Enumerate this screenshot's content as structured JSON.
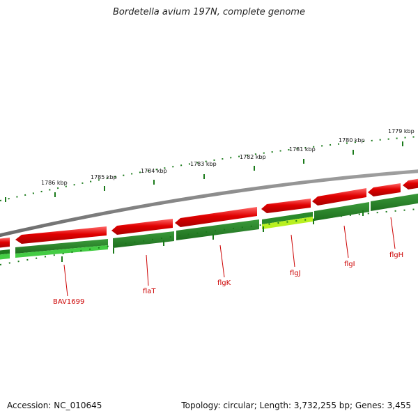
{
  "title": "Bordetella avium 197N, complete genome",
  "kbp_labels": [
    "1786 kbp",
    "1785 kbp",
    "1784 kbp",
    "1783 kbp",
    "1782 kbp",
    "1781 kbp",
    "1780 kbp",
    "1779 kbp"
  ],
  "gene_labels": [
    "BAV1699",
    "flaT",
    "flgK",
    "flgJ",
    "flgI",
    "flgH"
  ],
  "footer": {
    "accession": "Accession: NC_010645",
    "summary": "Topology: circular; Length: 3,732,255 bp; Genes: 3,455"
  },
  "colors": {
    "forward_gene": "#e00000",
    "cds_dark": "#2a8a2a",
    "cds_light": "#44cc44",
    "cds_highlight": "#b8f020",
    "backbone": "#808080",
    "tick": "#1a7a1a",
    "label": "#cc0000"
  }
}
